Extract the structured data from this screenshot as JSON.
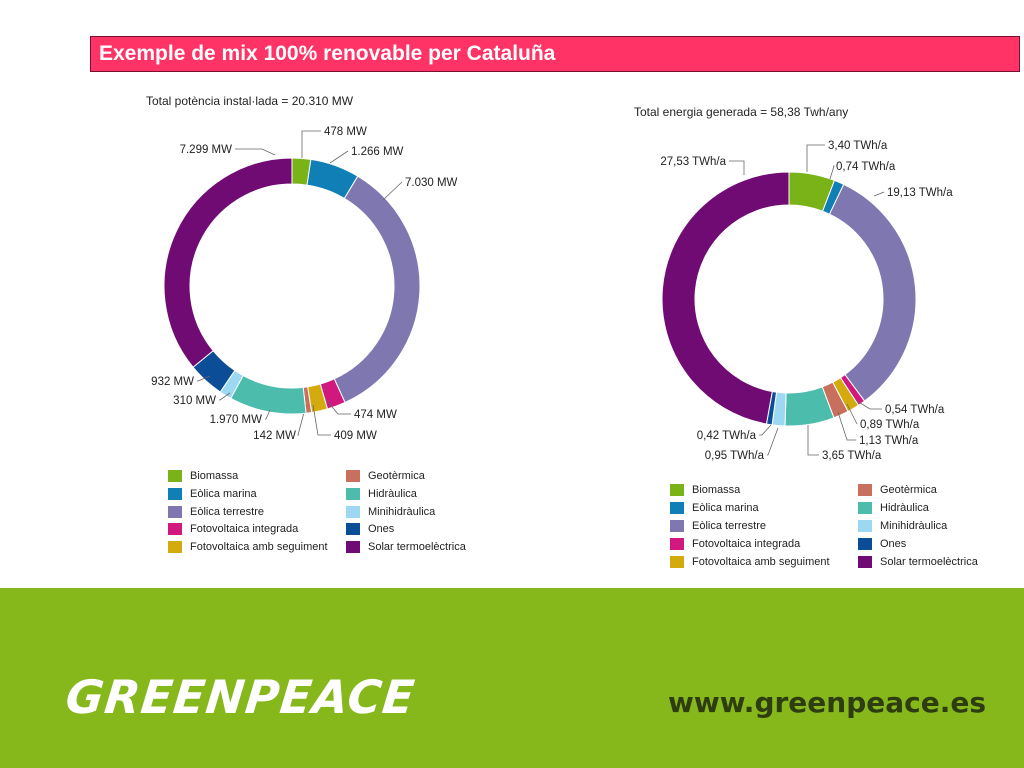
{
  "slide": {
    "title": "Exemple de mix 100% renovable per Cataluña"
  },
  "footer": {
    "logo_text": "GREENPEACE",
    "url": "www.greenpeace.es"
  },
  "legend_categories": [
    "Biomassa",
    "Geotèrmica",
    "Eòlica marina",
    "Hidràulica",
    "Eòlica terrestre",
    "Minihidràulica",
    "Fotovoltaica integrada",
    "Ones",
    "Fotovoltaica amb seguiment",
    "Solar termoelèctrica"
  ],
  "chart_data": [
    {
      "type": "pie",
      "variant": "donut",
      "title": "Total potència instal·lada = 20.310 MW",
      "unit": "MW",
      "slices": [
        {
          "name": "Biomassa",
          "value": 478,
          "label": "478 MW",
          "color": "#7ab317"
        },
        {
          "name": "Eòlica marina",
          "value": 1266,
          "label": "1.266 MW",
          "color": "#0f7fb5"
        },
        {
          "name": "Eòlica terrestre",
          "value": 7030,
          "label": "7.030 MW",
          "color": "#7f77b0"
        },
        {
          "name": "Fotovoltaica integrada",
          "value": 474,
          "label": "474 MW",
          "color": "#d0187f"
        },
        {
          "name": "Fotovoltaica amb seguiment",
          "value": 409,
          "label": "409 MW",
          "color": "#d4ab0f"
        },
        {
          "name": "Geotèrmica",
          "value": 142,
          "label": "142 MW",
          "color": "#c86f5e"
        },
        {
          "name": "Hidràulica",
          "value": 1970,
          "label": "1.970 MW",
          "color": "#4cbcad"
        },
        {
          "name": "Minihidràulica",
          "value": 310,
          "label": "310 MW",
          "color": "#9dd8f2"
        },
        {
          "name": "Ones",
          "value": 932,
          "label": "932 MW",
          "color": "#0b4d97"
        },
        {
          "name": "Solar termoelèctrica",
          "value": 7299,
          "label": "7.299 MW",
          "color": "#700b74"
        }
      ]
    },
    {
      "type": "pie",
      "variant": "donut",
      "title": "Total energia generada = 58,38 Twh/any",
      "unit": "TWh/a",
      "slices": [
        {
          "name": "Biomassa",
          "value": 3.4,
          "label": "3,40 TWh/a",
          "color": "#7ab317"
        },
        {
          "name": "Eòlica marina",
          "value": 0.74,
          "label": "0,74 TWh/a",
          "color": "#0f7fb5"
        },
        {
          "name": "Eòlica terrestre",
          "value": 19.13,
          "label": "19,13 TWh/a",
          "color": "#7f77b0"
        },
        {
          "name": "Fotovoltaica integrada",
          "value": 0.54,
          "label": "0,54 TWh/a",
          "color": "#d0187f"
        },
        {
          "name": "Fotovoltaica amb seguiment",
          "value": 0.89,
          "label": "0,89 TWh/a",
          "color": "#d4ab0f"
        },
        {
          "name": "Geotèrmica",
          "value": 1.13,
          "label": "1,13 TWh/a",
          "color": "#c86f5e"
        },
        {
          "name": "Hidràulica",
          "value": 3.65,
          "label": "3,65 TWh/a",
          "color": "#4cbcad"
        },
        {
          "name": "Minihidràulica",
          "value": 0.95,
          "label": "0,95 TWh/a",
          "color": "#9dd8f2"
        },
        {
          "name": "Ones",
          "value": 0.42,
          "label": "0,42 TWh/a",
          "color": "#0b4d97"
        },
        {
          "name": "Solar termoelèctrica",
          "value": 27.53,
          "label": "27,53 TWh/a",
          "color": "#700b74"
        }
      ]
    }
  ]
}
